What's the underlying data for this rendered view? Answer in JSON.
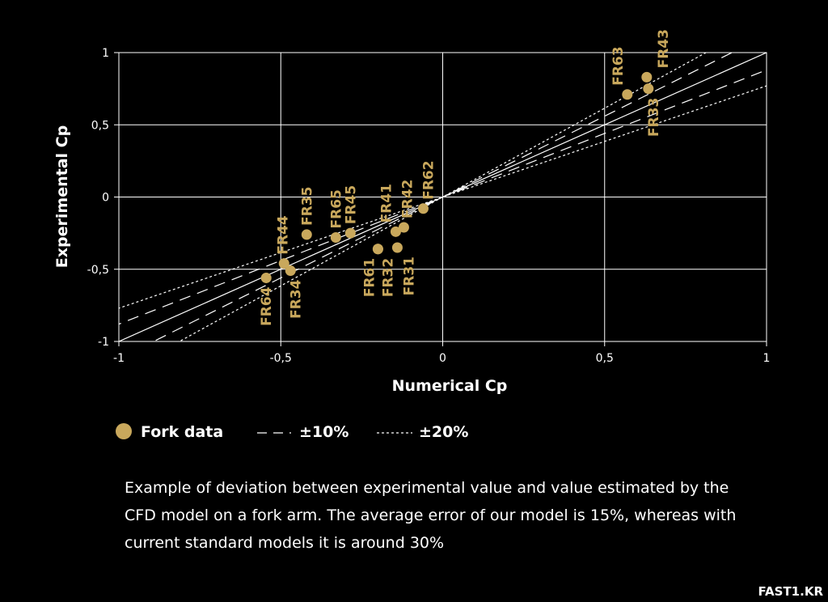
{
  "chart_data": {
    "type": "scatter",
    "title": "",
    "xlabel": "Numerical Cp",
    "ylabel": "Experimental Cp",
    "xlim": [
      -1,
      1
    ],
    "ylim": [
      -1,
      1
    ],
    "grid": true,
    "x_ticks": [
      -1,
      -0.5,
      0,
      0.5,
      1
    ],
    "x_tick_labels": [
      "-1",
      "-0,5",
      "0",
      "0,5",
      "1"
    ],
    "y_ticks": [
      -1,
      -0.5,
      0,
      0.5,
      1
    ],
    "y_tick_labels": [
      "-1",
      "-0,5",
      "0",
      "0,5",
      "1"
    ],
    "series": [
      {
        "name": "Fork data",
        "points": [
          {
            "label": "FR63",
            "x": 0.57,
            "y": 0.71
          },
          {
            "label": "FR43",
            "x": 0.63,
            "y": 0.83
          },
          {
            "label": "FR33",
            "x": 0.635,
            "y": 0.75
          },
          {
            "label": "FR62",
            "x": -0.06,
            "y": -0.08
          },
          {
            "label": "FR42",
            "x": -0.12,
            "y": -0.21
          },
          {
            "label": "FR41",
            "x": -0.145,
            "y": -0.24
          },
          {
            "label": "FR31",
            "x": -0.14,
            "y": -0.35
          },
          {
            "label": "FR32",
            "x": -0.2,
            "y": -0.36
          },
          {
            "label": "FR61",
            "x": -0.2,
            "y": -0.36
          },
          {
            "label": "FR45",
            "x": -0.285,
            "y": -0.25
          },
          {
            "label": "FR65",
            "x": -0.33,
            "y": -0.28
          },
          {
            "label": "FR35",
            "x": -0.42,
            "y": -0.26
          },
          {
            "label": "FR44",
            "x": -0.49,
            "y": -0.46
          },
          {
            "label": "FR34",
            "x": -0.47,
            "y": -0.51
          },
          {
            "label": "FR64",
            "x": -0.545,
            "y": -0.56
          }
        ]
      }
    ],
    "reference_lines": [
      {
        "name": "y = x",
        "style": "solid",
        "slope": 1.0
      },
      {
        "name": "±10%",
        "style": "dashed",
        "slopes": [
          0.88,
          1.12
        ]
      },
      {
        "name": "±20%",
        "style": "dotted",
        "slopes": [
          0.77,
          1.23
        ]
      }
    ],
    "legend": {
      "placement": "bottom-left",
      "items": [
        {
          "label": "Fork data",
          "marker": "dot"
        },
        {
          "label": "±10%",
          "marker": "dashed"
        },
        {
          "label": "±20%",
          "marker": "dotted"
        }
      ]
    },
    "colors": {
      "point": "#c9a85c",
      "label": "#c9a85c",
      "grid": "#ffffff",
      "line": "#ffffff",
      "background": "#000000"
    }
  },
  "caption": "Example of deviation between experimental value and value estimated by the CFD model on a fork arm. The average error of our model is 15%, whereas with current standard models it is around 30%",
  "watermark": "FAST1.KR"
}
